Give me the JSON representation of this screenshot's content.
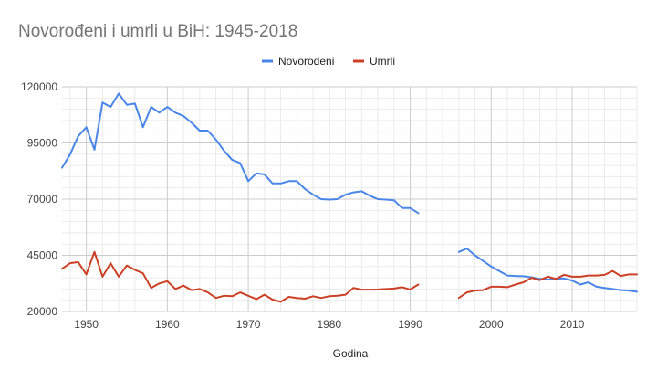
{
  "chart_data": {
    "type": "line",
    "title": "Novorođeni i umrli u BiH: 1945-2018",
    "xlabel": "Godina",
    "ylabel": "",
    "xlim": [
      1947,
      2018
    ],
    "ylim": [
      20000,
      120000
    ],
    "x_ticks": [
      1950,
      1960,
      1970,
      1980,
      1990,
      2000,
      2010
    ],
    "y_ticks": [
      20000,
      45000,
      70000,
      95000,
      120000
    ],
    "grid": true,
    "legend_position": "top",
    "series": [
      {
        "name": "Novorođeni",
        "color": "#4a86e8",
        "points": [
          [
            1947,
            84000
          ],
          [
            1948,
            90000
          ],
          [
            1949,
            98000
          ],
          [
            1950,
            102000
          ],
          [
            1951,
            92000
          ],
          [
            1952,
            113000
          ],
          [
            1953,
            111000
          ],
          [
            1954,
            117000
          ],
          [
            1955,
            112000
          ],
          [
            1956,
            112500
          ],
          [
            1957,
            102000
          ],
          [
            1958,
            111000
          ],
          [
            1959,
            108500
          ],
          [
            1960,
            111000
          ],
          [
            1961,
            108500
          ],
          [
            1962,
            107000
          ],
          [
            1963,
            104000
          ],
          [
            1964,
            100500
          ],
          [
            1965,
            100500
          ],
          [
            1966,
            96500
          ],
          [
            1967,
            91500
          ],
          [
            1968,
            87500
          ],
          [
            1969,
            86000
          ],
          [
            1970,
            78000
          ],
          [
            1971,
            81500
          ],
          [
            1972,
            81000
          ],
          [
            1973,
            77000
          ],
          [
            1974,
            77000
          ],
          [
            1975,
            78000
          ],
          [
            1976,
            78000
          ],
          [
            1977,
            74500
          ],
          [
            1978,
            72000
          ],
          [
            1979,
            70000
          ],
          [
            1980,
            69800
          ],
          [
            1981,
            70000
          ],
          [
            1982,
            72000
          ],
          [
            1983,
            73000
          ],
          [
            1984,
            73500
          ],
          [
            1985,
            71500
          ],
          [
            1986,
            70000
          ],
          [
            1987,
            69800
          ],
          [
            1988,
            69500
          ],
          [
            1989,
            66000
          ],
          [
            1990,
            66000
          ],
          [
            1991,
            63800
          ],
          [
            1992,
            null
          ],
          [
            1993,
            null
          ],
          [
            1994,
            null
          ],
          [
            1995,
            null
          ],
          [
            1996,
            46500
          ],
          [
            1997,
            48000
          ],
          [
            1998,
            45000
          ],
          [
            1999,
            42500
          ],
          [
            2000,
            40000
          ],
          [
            2001,
            38000
          ],
          [
            2002,
            36000
          ],
          [
            2003,
            35800
          ],
          [
            2004,
            35700
          ],
          [
            2005,
            35200
          ],
          [
            2006,
            34500
          ],
          [
            2007,
            34200
          ],
          [
            2008,
            34600
          ],
          [
            2009,
            34700
          ],
          [
            2010,
            33800
          ],
          [
            2011,
            32000
          ],
          [
            2012,
            33000
          ],
          [
            2013,
            31000
          ],
          [
            2014,
            30500
          ],
          [
            2015,
            30000
          ],
          [
            2016,
            29500
          ],
          [
            2017,
            29300
          ],
          [
            2018,
            28800
          ]
        ]
      },
      {
        "name": "Umrli",
        "color": "#cc4125",
        "points": [
          [
            1947,
            39000
          ],
          [
            1948,
            41500
          ],
          [
            1949,
            42000
          ],
          [
            1950,
            36500
          ],
          [
            1951,
            46500
          ],
          [
            1952,
            35500
          ],
          [
            1953,
            41500
          ],
          [
            1954,
            35500
          ],
          [
            1955,
            40500
          ],
          [
            1956,
            38500
          ],
          [
            1957,
            37000
          ],
          [
            1958,
            30500
          ],
          [
            1959,
            32500
          ],
          [
            1960,
            33500
          ],
          [
            1961,
            30000
          ],
          [
            1962,
            31500
          ],
          [
            1963,
            29500
          ],
          [
            1964,
            30000
          ],
          [
            1965,
            28500
          ],
          [
            1966,
            26000
          ],
          [
            1967,
            27000
          ],
          [
            1968,
            26800
          ],
          [
            1969,
            28500
          ],
          [
            1970,
            27000
          ],
          [
            1971,
            25500
          ],
          [
            1972,
            27500
          ],
          [
            1973,
            25300
          ],
          [
            1974,
            24300
          ],
          [
            1975,
            26500
          ],
          [
            1976,
            26000
          ],
          [
            1977,
            25700
          ],
          [
            1978,
            26800
          ],
          [
            1979,
            26000
          ],
          [
            1980,
            26800
          ],
          [
            1981,
            27000
          ],
          [
            1982,
            27500
          ],
          [
            1983,
            30500
          ],
          [
            1984,
            29700
          ],
          [
            1985,
            29700
          ],
          [
            1986,
            29800
          ],
          [
            1987,
            30000
          ],
          [
            1988,
            30200
          ],
          [
            1989,
            30800
          ],
          [
            1990,
            29800
          ],
          [
            1991,
            32000
          ],
          [
            1992,
            null
          ],
          [
            1993,
            null
          ],
          [
            1994,
            null
          ],
          [
            1995,
            null
          ],
          [
            1996,
            26000
          ],
          [
            1997,
            28500
          ],
          [
            1998,
            29300
          ],
          [
            1999,
            29500
          ],
          [
            2000,
            31000
          ],
          [
            2001,
            31000
          ],
          [
            2002,
            30800
          ],
          [
            2003,
            32000
          ],
          [
            2004,
            33000
          ],
          [
            2005,
            35000
          ],
          [
            2006,
            34000
          ],
          [
            2007,
            35500
          ],
          [
            2008,
            34500
          ],
          [
            2009,
            36300
          ],
          [
            2010,
            35500
          ],
          [
            2011,
            35500
          ],
          [
            2012,
            36000
          ],
          [
            2013,
            36000
          ],
          [
            2014,
            36300
          ],
          [
            2015,
            38000
          ],
          [
            2016,
            35800
          ],
          [
            2017,
            36500
          ],
          [
            2018,
            36500
          ]
        ]
      }
    ]
  }
}
